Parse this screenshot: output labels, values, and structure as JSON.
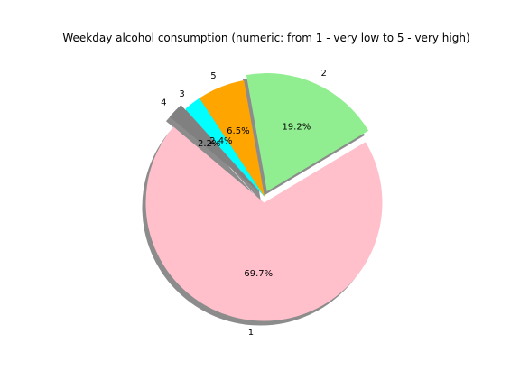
{
  "chart_data": {
    "type": "pie",
    "title": "Weekday alcohol consumption (numeric: from 1 - very low to 5 - very high)",
    "labels": [
      "1",
      "2",
      "5",
      "3",
      "4"
    ],
    "values": [
      69.7,
      19.2,
      6.5,
      2.4,
      2.2
    ],
    "pct_labels": [
      "69.7%",
      "19.2%",
      "6.5%",
      "2.4%",
      "2.2%"
    ],
    "colors": [
      "#ffc0cb",
      "#90ee90",
      "#ffa500",
      "#00ffff",
      "#808080"
    ],
    "exploded": [
      "1",
      "2",
      "4"
    ],
    "start_angle_deg": 140,
    "shadow": true
  }
}
